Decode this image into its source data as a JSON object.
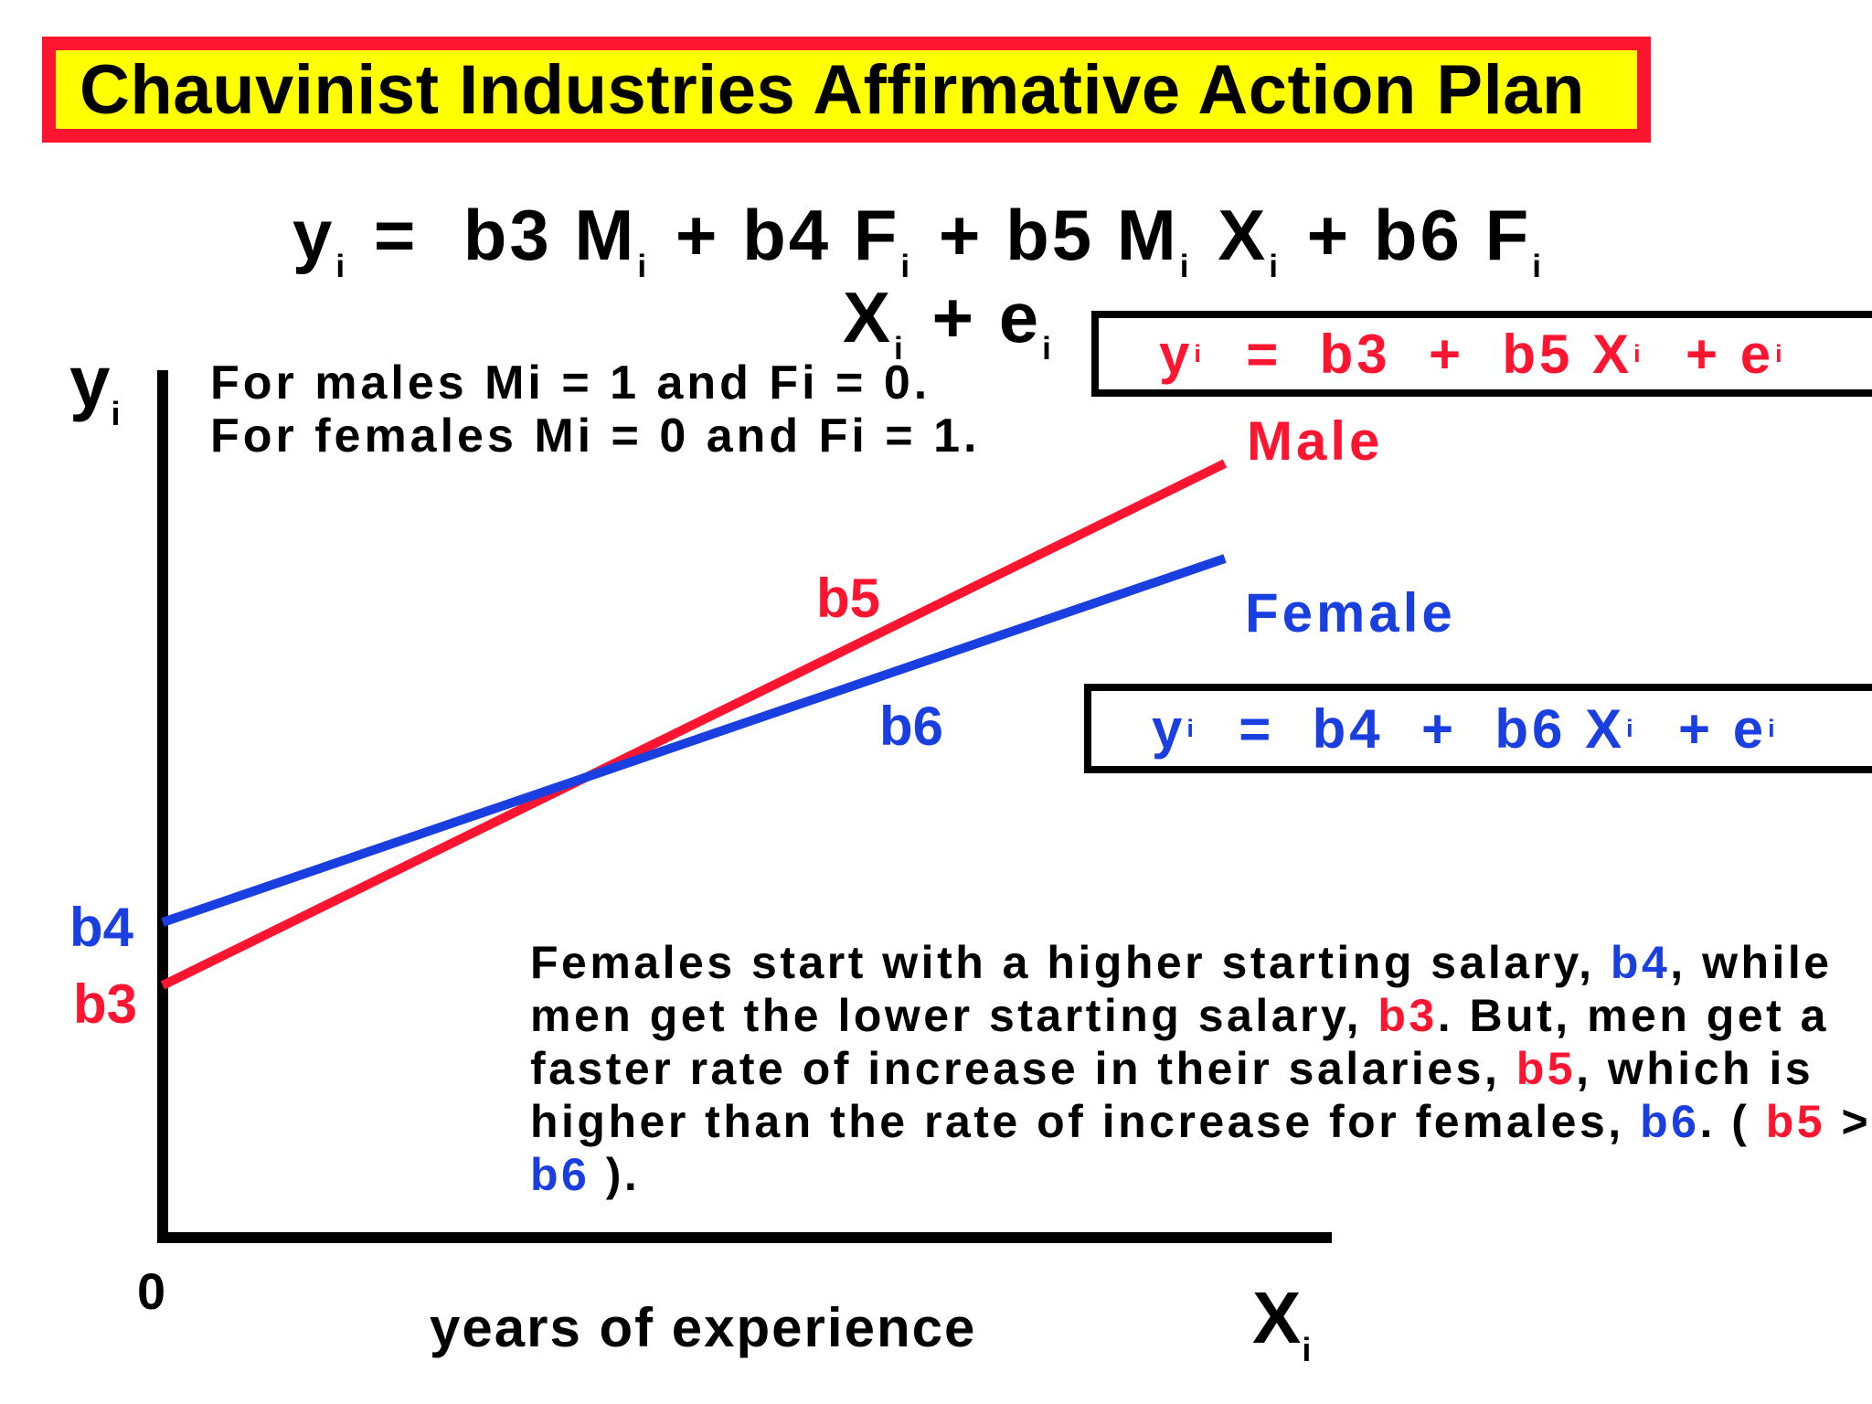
{
  "title": "Chauvinist Industries Affirmative Action Plan",
  "equation": {
    "y": "y",
    "i": "i",
    "eq": "=",
    "b3": "b3",
    "M": "M",
    "plus": "+",
    "b4": "b4",
    "F": "F",
    "b5": "b5",
    "X": "X",
    "b6": "b6",
    "e": "e"
  },
  "notes": {
    "males": "For males  Mi = 1  and  Fi = 0.",
    "females": "For females  Mi = 0  and  Fi = 1."
  },
  "male_equation": {
    "y": "y",
    "i": "i",
    "eq": "=",
    "b3": "b3",
    "plus": "+",
    "b5": "b5",
    "X": "X",
    "e": "e"
  },
  "female_equation": {
    "y": "y",
    "i": "i",
    "eq": "=",
    "b4": "b4",
    "plus": "+",
    "b6": "b6",
    "X": "X",
    "e": "e"
  },
  "lines": {
    "male": {
      "label": "Male",
      "slope_label": "b5",
      "intercept_label": "b3",
      "color": "#ff1530"
    },
    "female": {
      "label": "Female",
      "slope_label": "b6",
      "intercept_label": "b4",
      "color": "#1a3fe0"
    }
  },
  "axes": {
    "y_label": "y",
    "y_sub": "i",
    "x_label": "X",
    "x_sub": "i",
    "origin": "0",
    "x_title": "years  of  experience"
  },
  "paragraph": {
    "p1": "Females start with a higher starting salary, ",
    "b4": "b4",
    "p2": ", while men get the lower starting salary, ",
    "b3": "b3",
    "p3": ". But, men get a faster rate of increase in their salaries, ",
    "b5": "b5",
    "p4": ", which is higher than the rate of increase for females, ",
    "b6": "b6",
    "p5": ".  ( ",
    "b5b": "b5",
    "gt": " > ",
    "b6b": "b6",
    "p6": " )."
  }
}
